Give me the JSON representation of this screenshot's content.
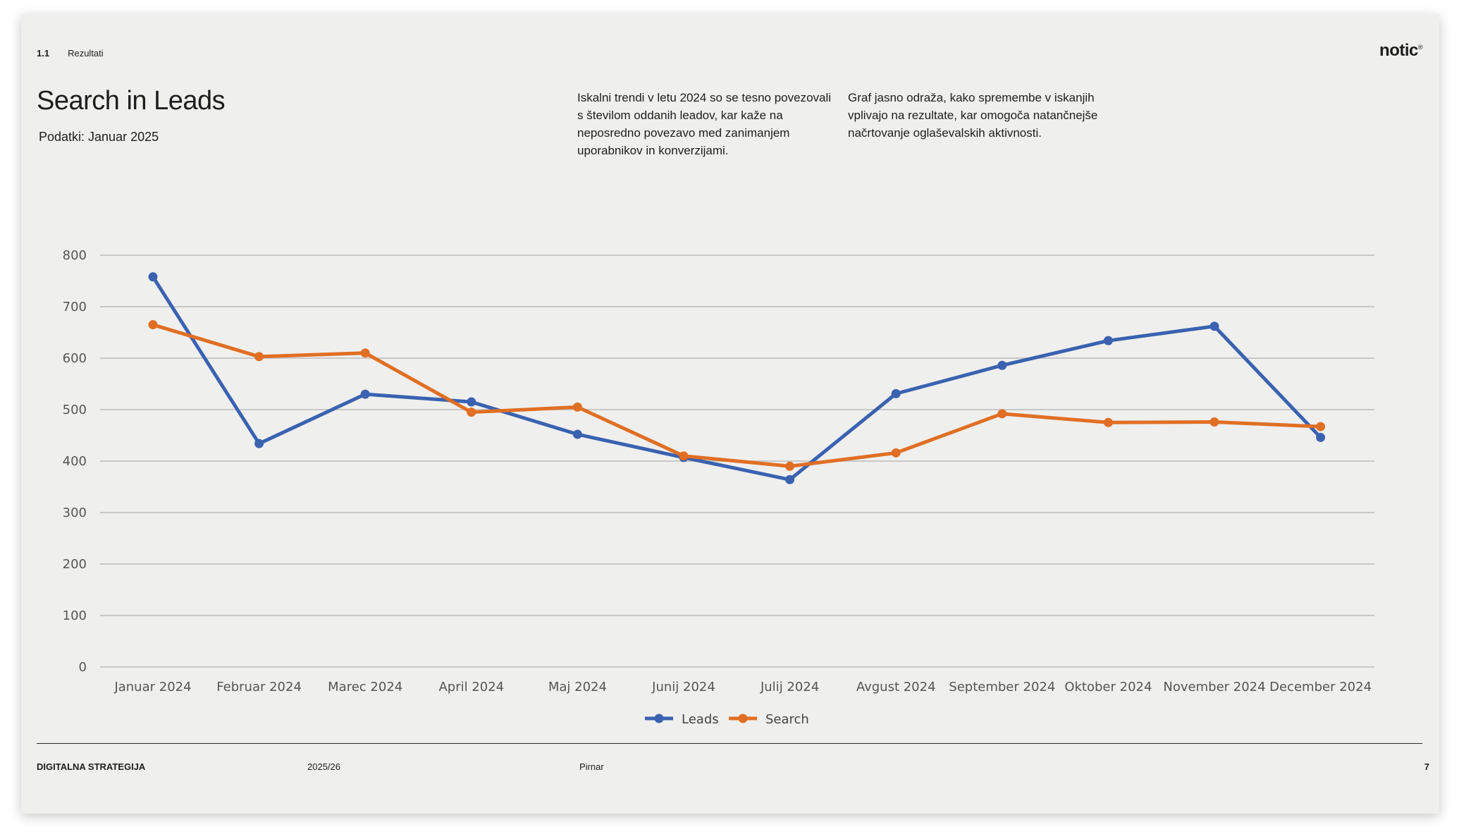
{
  "header": {
    "section_number": "1.1",
    "section_label": "Rezultati",
    "logo_text": "notic",
    "logo_mark": "®"
  },
  "title": "Search in Leads",
  "subtitle": "Podatki: Januar 2025",
  "description": [
    "Iskalni trendi v letu 2024 so se tesno povezovali s številom oddanih leadov, kar kaže na neposredno povezavo med zanimanjem uporabnikov in konverzijami.",
    "Graf jasno odraža, kako spremembe v iskanjih vplivajo na rezultate, kar omogoča natančnejše načrtovanje oglaševalskih aktivnosti."
  ],
  "chart_data": {
    "type": "line",
    "categories": [
      "Januar 2024",
      "Februar 2024",
      "Marec 2024",
      "April 2024",
      "Maj 2024",
      "Junij 2024",
      "Julij 2024",
      "Avgust 2024",
      "September 2024",
      "Oktober 2024",
      "November 2024",
      "December 2024"
    ],
    "series": [
      {
        "name": "Leads",
        "color": "#3a62b0",
        "values": [
          758,
          434,
          530,
          515,
          452,
          407,
          364,
          531,
          586,
          634,
          662,
          446
        ]
      },
      {
        "name": "Search",
        "color": "#e06f24",
        "values": [
          665,
          603,
          610,
          495,
          505,
          410,
          390,
          416,
          492,
          475,
          476,
          467
        ]
      }
    ],
    "ylim": [
      0,
      800
    ],
    "yticks": [
      0,
      100,
      200,
      300,
      400,
      500,
      600,
      700,
      800
    ],
    "grid": true,
    "legend_position": "bottom-center",
    "title": "",
    "xlabel": "",
    "ylabel": ""
  },
  "footer": {
    "left": "DIGITALNA STRATEGIJA",
    "year": "2025/26",
    "company": "Pirnar",
    "page": "7"
  }
}
